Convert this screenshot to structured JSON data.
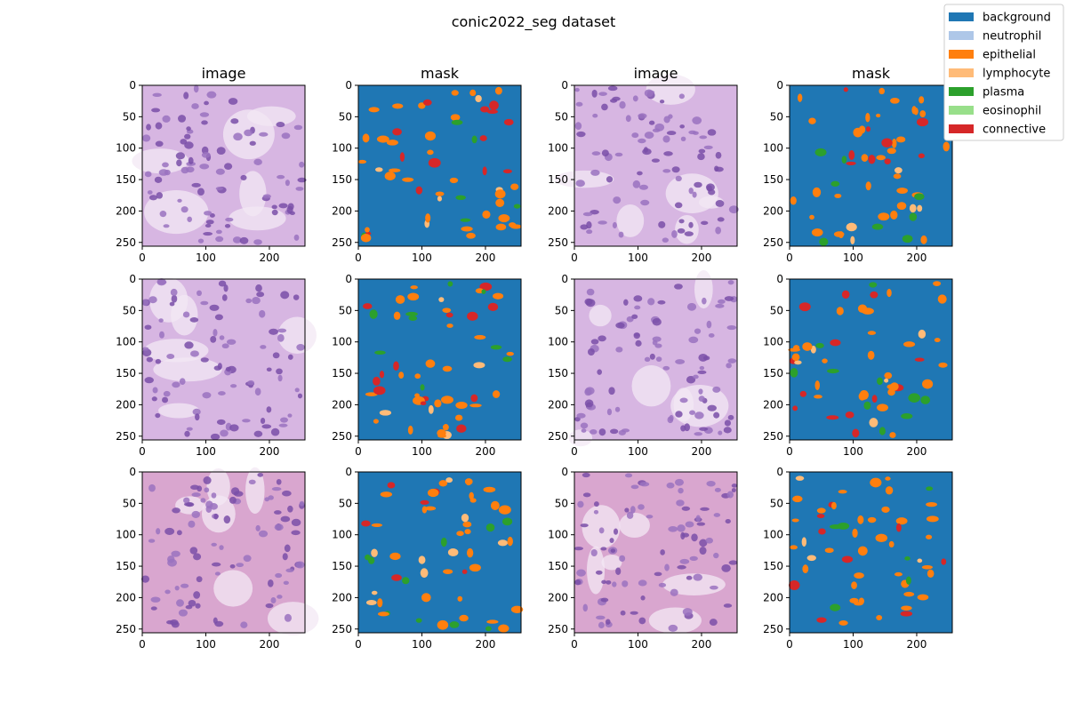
{
  "figure": {
    "title": "conic2022_seg dataset"
  },
  "chart_data": {
    "type": "image-grid",
    "title": "conic2022_seg dataset",
    "rows": 3,
    "columns": [
      {
        "title": "image",
        "kind": "histology"
      },
      {
        "title": "mask",
        "kind": "segmentation"
      },
      {
        "title": "image",
        "kind": "histology"
      },
      {
        "title": "mask",
        "kind": "segmentation"
      }
    ],
    "axes": {
      "xlim": [
        0,
        256
      ],
      "ylim": [
        256,
        0
      ],
      "x_ticks": [
        "0",
        "100",
        "200"
      ],
      "x_tick_values": [
        0,
        100,
        200
      ],
      "y_ticks": [
        "0",
        "50",
        "100",
        "150",
        "200",
        "250"
      ],
      "y_tick_values": [
        0,
        50,
        100,
        150,
        200,
        250
      ]
    },
    "legend": {
      "position": "top-right",
      "entries": [
        {
          "label": "background",
          "color": "#1f77b4"
        },
        {
          "label": "neutrophil",
          "color": "#aec7e8"
        },
        {
          "label": "epithelial",
          "color": "#ff7f0e"
        },
        {
          "label": "lymphocyte",
          "color": "#ffbb78"
        },
        {
          "label": "plasma",
          "color": "#2ca02c"
        },
        {
          "label": "eosinophil",
          "color": "#98df8a"
        },
        {
          "label": "connective",
          "color": "#d62728"
        }
      ]
    }
  }
}
